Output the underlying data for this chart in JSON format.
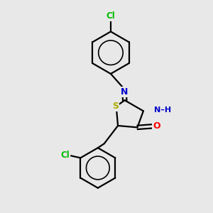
{
  "bg_color": "#e8e8e8",
  "atom_colors": {
    "C": "#000000",
    "N": "#0000cc",
    "O": "#ff0000",
    "S": "#aaaa00",
    "Cl": "#00bb00",
    "H": "#000000"
  },
  "line_color": "#000000",
  "figsize": [
    3.0,
    3.0
  ],
  "dpi": 100
}
